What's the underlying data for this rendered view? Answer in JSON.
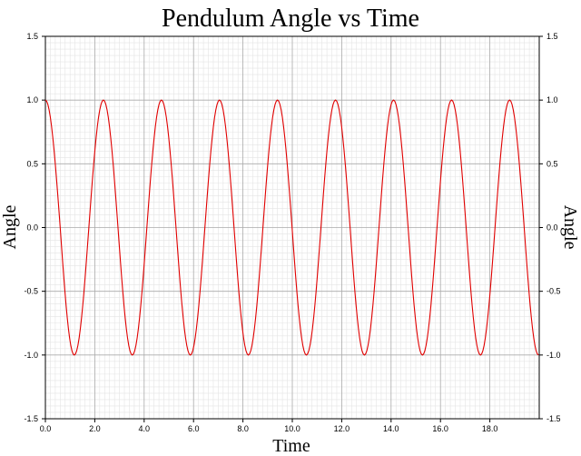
{
  "chart_data": {
    "type": "line",
    "title": "Pendulum Angle vs Time",
    "xlabel": "Time",
    "ylabel": "Angle",
    "ylabel_right": "Angle",
    "xlim": [
      0,
      20
    ],
    "ylim": [
      -1.5,
      1.5
    ],
    "x_ticks": [
      "0.0",
      "2.0",
      "4.0",
      "6.0",
      "8.0",
      "10.0",
      "12.0",
      "14.0",
      "16.0",
      "18.0"
    ],
    "y_ticks": [
      "-1.5",
      "-1.0",
      "-0.5",
      "0.0",
      "0.5",
      "1.0",
      "1.5"
    ],
    "grid": true,
    "series": [
      {
        "color": "#e00000",
        "x": [
          0.0,
          0.6,
          1.17,
          1.76,
          2.35,
          2.94,
          3.52,
          4.11,
          4.7,
          5.29,
          5.87,
          6.46,
          7.05,
          7.64,
          8.22,
          8.81,
          9.4,
          9.99,
          10.57,
          11.16,
          11.75,
          12.34,
          12.92,
          13.51,
          14.1,
          14.69,
          15.27,
          15.86,
          16.45,
          17.04,
          17.62,
          18.21,
          18.8,
          19.39,
          19.97
        ],
        "y": [
          1.0,
          0.0,
          -1.0,
          0.0,
          1.0,
          0.0,
          -1.0,
          0.0,
          1.0,
          0.0,
          -1.0,
          0.0,
          1.0,
          0.0,
          -1.0,
          0.0,
          1.0,
          0.0,
          -1.0,
          0.0,
          1.0,
          0.0,
          -1.0,
          0.0,
          1.0,
          0.0,
          -1.0,
          0.0,
          1.0,
          0.0,
          -1.0,
          0.0,
          1.0,
          0.0,
          -1.0
        ]
      }
    ]
  }
}
